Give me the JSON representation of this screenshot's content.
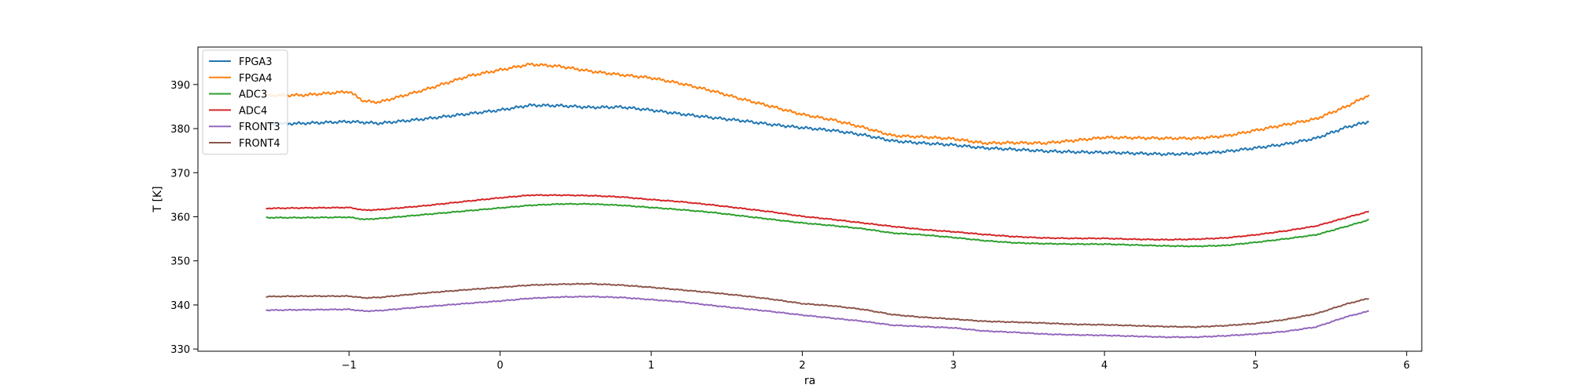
{
  "chart_data": {
    "type": "line",
    "xlabel": "ra",
    "ylabel": "T [K]",
    "xlim": [
      -2.0,
      6.1
    ],
    "ylim": [
      329.5,
      398.5
    ],
    "xticks": [
      -1,
      0,
      1,
      2,
      3,
      4,
      5,
      6
    ],
    "yticks": [
      330,
      340,
      350,
      360,
      370,
      380,
      390
    ],
    "grid": false,
    "legend_position": "top-left",
    "x": [
      -1.55,
      -1.3,
      -1.0,
      -0.9,
      -0.8,
      -0.5,
      -0.2,
      0.0,
      0.2,
      0.4,
      0.6,
      0.8,
      1.0,
      1.2,
      1.4,
      1.6,
      1.8,
      2.0,
      2.2,
      2.4,
      2.6,
      2.8,
      3.0,
      3.2,
      3.4,
      3.6,
      3.8,
      4.0,
      4.2,
      4.4,
      4.6,
      4.8,
      5.0,
      5.2,
      5.4,
      5.6,
      5.75
    ],
    "series": [
      {
        "name": "FPGA3",
        "color": "#1f77b4",
        "values": [
          381.0,
          381.2,
          381.6,
          381.4,
          381.2,
          382.2,
          383.4,
          384.2,
          385.3,
          385.2,
          384.8,
          384.9,
          384.2,
          383.3,
          382.5,
          381.8,
          380.9,
          380.2,
          379.6,
          378.6,
          377.2,
          376.7,
          376.3,
          375.6,
          375.3,
          374.9,
          374.7,
          374.6,
          374.4,
          374.2,
          374.3,
          374.8,
          375.6,
          376.5,
          377.8,
          380.3,
          381.6
        ]
      },
      {
        "name": "FPGA4",
        "color": "#ff7f0e",
        "values": [
          387.5,
          387.6,
          388.4,
          386.2,
          386.0,
          388.8,
          392.0,
          393.3,
          394.6,
          394.1,
          393.0,
          392.2,
          391.5,
          390.2,
          388.6,
          386.7,
          385.0,
          383.2,
          382.0,
          380.3,
          378.4,
          378.1,
          377.7,
          376.7,
          376.8,
          376.7,
          377.3,
          378.0,
          377.9,
          377.8,
          377.8,
          378.3,
          379.6,
          380.9,
          382.2,
          385.0,
          387.6
        ]
      },
      {
        "name": "ADC3",
        "color": "#2ca02c",
        "values": [
          359.8,
          359.8,
          359.9,
          359.4,
          359.6,
          360.5,
          361.4,
          362.0,
          362.6,
          362.9,
          362.9,
          362.6,
          362.1,
          361.6,
          361.0,
          360.2,
          359.4,
          358.6,
          358.0,
          357.3,
          356.3,
          355.9,
          355.3,
          354.6,
          354.1,
          353.9,
          353.8,
          353.8,
          353.6,
          353.4,
          353.3,
          353.5,
          354.2,
          355.0,
          355.9,
          357.8,
          359.3
        ]
      },
      {
        "name": "ADC4",
        "color": "#d62728",
        "values": [
          361.9,
          362.0,
          362.1,
          361.5,
          361.6,
          362.5,
          363.6,
          364.3,
          364.9,
          364.9,
          364.8,
          364.5,
          363.9,
          363.4,
          362.7,
          361.9,
          361.1,
          360.1,
          359.4,
          358.6,
          357.8,
          357.1,
          356.6,
          356.0,
          355.5,
          355.2,
          355.1,
          355.1,
          354.9,
          354.8,
          354.9,
          355.2,
          355.9,
          356.8,
          357.9,
          359.8,
          361.2
        ]
      },
      {
        "name": "FRONT3",
        "color": "#9467bd",
        "values": [
          338.8,
          338.9,
          339.0,
          338.6,
          338.7,
          339.6,
          340.4,
          340.9,
          341.5,
          341.8,
          341.9,
          341.7,
          341.2,
          340.7,
          339.9,
          339.2,
          338.5,
          337.7,
          337.0,
          336.3,
          335.4,
          335.1,
          334.8,
          334.1,
          333.8,
          333.4,
          333.2,
          333.1,
          332.9,
          332.7,
          332.7,
          333.0,
          333.4,
          334.0,
          335.0,
          337.3,
          338.6
        ]
      },
      {
        "name": "FRONT4",
        "color": "#8c564b",
        "values": [
          341.9,
          342.0,
          342.0,
          341.6,
          341.7,
          342.7,
          343.5,
          344.0,
          344.5,
          344.7,
          344.8,
          344.5,
          344.0,
          343.4,
          342.8,
          342.1,
          341.3,
          340.3,
          339.8,
          339.0,
          337.8,
          337.2,
          336.8,
          336.3,
          336.1,
          335.9,
          335.6,
          335.5,
          335.3,
          335.1,
          335.0,
          335.3,
          335.8,
          336.7,
          338.0,
          340.2,
          341.5
        ]
      }
    ]
  }
}
